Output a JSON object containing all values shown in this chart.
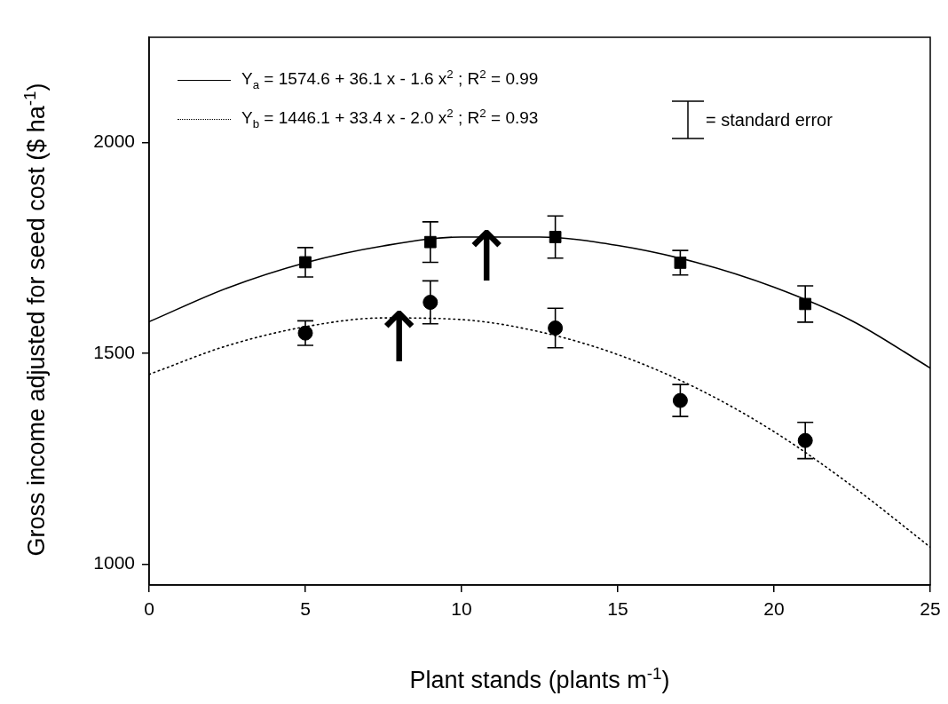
{
  "chart_data": {
    "type": "line",
    "xlabel": "Plant stands (plants m$^{-1}$)",
    "ylabel": "Gross income adjusted for seed cost ($ ha$^{-1}$)",
    "xlim": [
      0,
      25
    ],
    "xticks": [
      0,
      5,
      10,
      15,
      20,
      25
    ],
    "ylim": [
      950,
      2250
    ],
    "yticks": [
      1000,
      1500,
      2000
    ],
    "grid": false,
    "legend": "top left",
    "series": [
      {
        "name": "Y$_{a}$ = 1574.6 + 36.1 x - 1.6 x$^{2}$ ; R$^{2}$ = 0.99",
        "color": "#000000",
        "marker": "none",
        "line_style": "solid",
        "x": [
          0,
          2.5,
          5,
          7.5,
          10,
          12.5,
          15,
          17.5,
          20,
          22.5,
          25
        ],
        "values": [
          1575,
          1655,
          1715,
          1755,
          1776,
          1776,
          1756,
          1716,
          1657,
          1577,
          1465
        ]
      },
      {
        "name": "Y$_{b}$ = 1446.1 + 33.4 x - 2.0 x$^{2}$ ; R$^{2}$ = 0.93",
        "color": "#000000",
        "marker": "none",
        "line_style": "dotted",
        "x": [
          0,
          2.5,
          5,
          7.5,
          10,
          12.5,
          15,
          17.5,
          20,
          22.5,
          25
        ],
        "values": [
          1450,
          1518,
          1563,
          1584,
          1580,
          1551,
          1497,
          1418,
          1314,
          1185,
          1040
        ]
      },
      {
        "type": "scatter",
        "color": "#000000",
        "marker": "square",
        "x": [
          5,
          9,
          13,
          17,
          21
        ],
        "values": [
          1716,
          1764,
          1776,
          1715,
          1617
        ],
        "errors": [
          35,
          48,
          50,
          29,
          43
        ]
      },
      {
        "type": "scatter",
        "color": "#000000",
        "marker": "circle",
        "x": [
          5,
          9,
          13,
          17,
          21
        ],
        "values": [
          1548,
          1621,
          1560,
          1388,
          1293
        ],
        "errors": [
          29,
          51,
          47,
          38,
          43
        ]
      }
    ],
    "annotations": [
      "= standard error",
      {
        "text": "↑",
        "x": 10.8,
        "y": 1776
      },
      {
        "text": "↑",
        "x": 8,
        "y": 1584
      }
    ]
  }
}
